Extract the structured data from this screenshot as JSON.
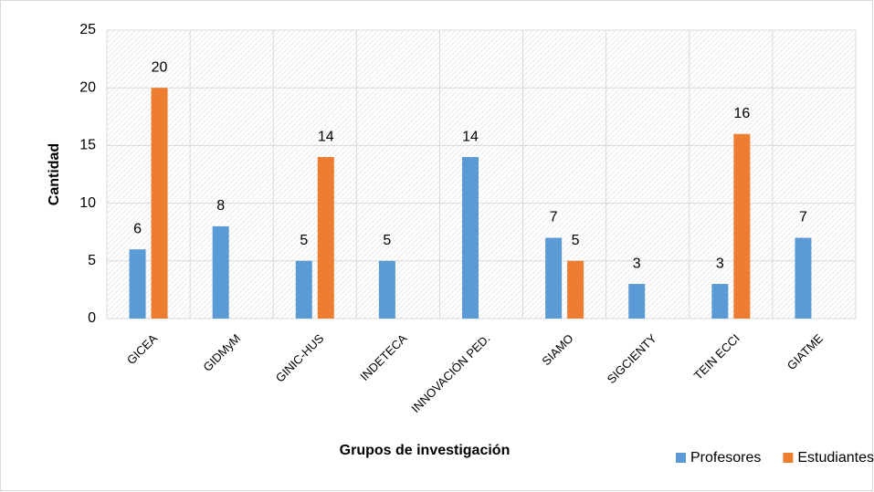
{
  "chart_data": {
    "type": "bar",
    "categories": [
      "GICEA",
      "GIDMyM",
      "GINIC-HUS",
      "INDETECA",
      "INNOVACIÓN PED.",
      "SIAMO",
      "SIGCIENTY",
      "TEIN ECCI",
      "GIATME"
    ],
    "series": [
      {
        "name": "Profesores",
        "color": "#5b9bd5",
        "values": [
          6,
          8,
          5,
          5,
          14,
          7,
          3,
          3,
          7
        ]
      },
      {
        "name": "Estudiantes",
        "color": "#ed7d31",
        "values": [
          20,
          null,
          14,
          null,
          null,
          5,
          null,
          16,
          null
        ]
      }
    ],
    "x_label": "Grupos de investigación",
    "y_label": "Cantidad",
    "ylim": [
      0,
      25
    ],
    "yticks": [
      0,
      5,
      10,
      15,
      20,
      25
    ],
    "grid": true,
    "legend": "bottom-right"
  }
}
